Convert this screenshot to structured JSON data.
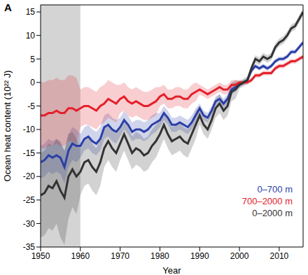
{
  "chart_data": {
    "type": "line",
    "panel_label": "A",
    "x_label": "Year",
    "y_label": "Ocean heat content (10²² J)",
    "xlim": [
      1950,
      2016
    ],
    "xticks": [
      1950,
      1960,
      1970,
      1980,
      1990,
      2000,
      2010
    ],
    "ylim": [
      -35,
      16.5
    ],
    "yticks": [
      -35,
      -30,
      -25,
      -20,
      -15,
      -10,
      -5,
      0,
      5,
      10,
      15
    ],
    "grid": false,
    "legend": "lower right",
    "shaded_x": [
      1950,
      1960
    ],
    "x": [
      1950,
      1951,
      1952,
      1953,
      1954,
      1955,
      1956,
      1957,
      1958,
      1959,
      1960,
      1961,
      1962,
      1963,
      1964,
      1965,
      1966,
      1967,
      1968,
      1969,
      1970,
      1971,
      1972,
      1973,
      1974,
      1975,
      1976,
      1977,
      1978,
      1979,
      1980,
      1981,
      1982,
      1983,
      1984,
      1985,
      1986,
      1987,
      1988,
      1989,
      1990,
      1991,
      1992,
      1993,
      1994,
      1995,
      1996,
      1997,
      1998,
      1999,
      2000,
      2001,
      2002,
      2003,
      2004,
      2005,
      2006,
      2007,
      2008,
      2009,
      2010,
      2011,
      2012,
      2013,
      2014,
      2015,
      2016
    ],
    "series": [
      {
        "name": "0–700 m",
        "color": "#2b3fa8",
        "values": [
          -17,
          -16.5,
          -15.5,
          -16,
          -15.5,
          -16,
          -18,
          -14.5,
          -13,
          -13.5,
          -13.5,
          -12,
          -11.5,
          -12.5,
          -13,
          -12,
          -9.5,
          -9,
          -10,
          -10.5,
          -9.5,
          -8,
          -9,
          -10.5,
          -10,
          -10,
          -10.5,
          -10,
          -9,
          -8.5,
          -8,
          -6.5,
          -7.5,
          -9,
          -9,
          -8.5,
          -9,
          -9.5,
          -8.5,
          -7,
          -5.5,
          -7,
          -7.5,
          -6,
          -4,
          -3.5,
          -4.5,
          -3.5,
          -1.5,
          -1,
          -0.5,
          0,
          0.5,
          2.5,
          3.5,
          3,
          3.5,
          3,
          3.5,
          4.5,
          5,
          5,
          5.5,
          6.5,
          6.5,
          7.5,
          8.5
        ],
        "uncertainty": [
          3.5,
          3.5,
          3.5,
          3.5,
          3.5,
          3.5,
          3.5,
          3.5,
          3.5,
          3.5,
          2.5,
          2.5,
          2.5,
          2.5,
          2.5,
          2.5,
          2.5,
          2.5,
          2.5,
          2.5,
          2,
          2,
          2,
          2,
          2,
          2,
          2,
          2,
          2,
          2,
          1.5,
          1.5,
          1.5,
          1.5,
          1.5,
          1.5,
          1.5,
          1.5,
          1.5,
          1.5,
          1,
          1,
          1,
          1,
          1,
          1,
          1,
          1,
          1,
          1,
          0.5,
          0.5,
          0.5,
          0.5,
          0.5,
          0.5,
          0.5,
          0.5,
          0.5,
          0.5,
          0.5,
          0.5,
          0.5,
          0.5,
          0.5,
          0.5,
          0.5
        ]
      },
      {
        "name": "700–2000 m",
        "color": "#e3202b",
        "values": [
          -7,
          -7,
          -6.5,
          -6.5,
          -6,
          -6.5,
          -6.5,
          -5.5,
          -5.5,
          -6,
          -5.5,
          -5,
          -5,
          -5.5,
          -6,
          -5,
          -4.5,
          -3.5,
          -4,
          -4.5,
          -3.5,
          -3,
          -4,
          -4.5,
          -4,
          -4.5,
          -5,
          -5,
          -4.5,
          -4,
          -3,
          -2.5,
          -3.5,
          -3.5,
          -3,
          -3,
          -3.5,
          -3.5,
          -2.5,
          -2,
          -1.5,
          -2,
          -2.5,
          -2,
          -1.5,
          -1,
          -1.5,
          -1.5,
          -0.5,
          -0.5,
          0,
          0,
          0,
          0.5,
          1.5,
          1.5,
          2,
          2,
          2,
          3,
          3.5,
          3.5,
          4,
          4.5,
          4.5,
          5,
          5.5
        ],
        "uncertainty": [
          7,
          7,
          7,
          7,
          7,
          7,
          7,
          7,
          7,
          7,
          4,
          4,
          4,
          4,
          4,
          4,
          4,
          4,
          4,
          4,
          3,
          3,
          3,
          3,
          3,
          3,
          3,
          3,
          3,
          3,
          2,
          2,
          2,
          2,
          2,
          2,
          2,
          2,
          2,
          2,
          1,
          1,
          1,
          1,
          1,
          1,
          1,
          1,
          1,
          1,
          0.5,
          0.5,
          0.5,
          0.5,
          0.5,
          0.5,
          0.5,
          0.5,
          0.5,
          0.5,
          0.5,
          0.5,
          0.5,
          0.5,
          0.5,
          0.5,
          0.5
        ]
      },
      {
        "name": "0–2000 m",
        "color": "#333333",
        "values": [
          -24,
          -23.5,
          -22,
          -22.5,
          -21,
          -23,
          -24.5,
          -20,
          -18.5,
          -20,
          -19,
          -17,
          -16.5,
          -18,
          -19,
          -17,
          -14,
          -12.5,
          -14,
          -15,
          -13,
          -11,
          -13,
          -15,
          -14,
          -14.5,
          -15.5,
          -15,
          -13.5,
          -12.5,
          -11,
          -9,
          -11,
          -12.5,
          -12,
          -11.5,
          -12.5,
          -13,
          -11,
          -9,
          -7,
          -9,
          -10,
          -8,
          -5.5,
          -4.5,
          -6,
          -5,
          -2,
          -1.5,
          -0.5,
          0,
          0.5,
          3,
          5,
          4.5,
          5.5,
          5,
          5.5,
          7.5,
          8.5,
          9,
          10,
          11.5,
          12,
          13.5,
          15
        ],
        "uncertainty": [
          9,
          9,
          9,
          9,
          9,
          10,
          10,
          9,
          8,
          8,
          5,
          5,
          5,
          5,
          5,
          5,
          4,
          4,
          4,
          4,
          3.5,
          3.5,
          3.5,
          3.5,
          3.5,
          3.5,
          3.5,
          3.5,
          3.5,
          3.5,
          3,
          3,
          3,
          3,
          3,
          3,
          3,
          3,
          3,
          3,
          2,
          2,
          2,
          2,
          2,
          2,
          2,
          2,
          2,
          2,
          0.8,
          0.8,
          0.8,
          0.8,
          0.8,
          0.8,
          0.8,
          0.8,
          0.8,
          0.8,
          0.8,
          0.8,
          0.8,
          0.8,
          0.8,
          0.8,
          0.8
        ]
      }
    ]
  }
}
